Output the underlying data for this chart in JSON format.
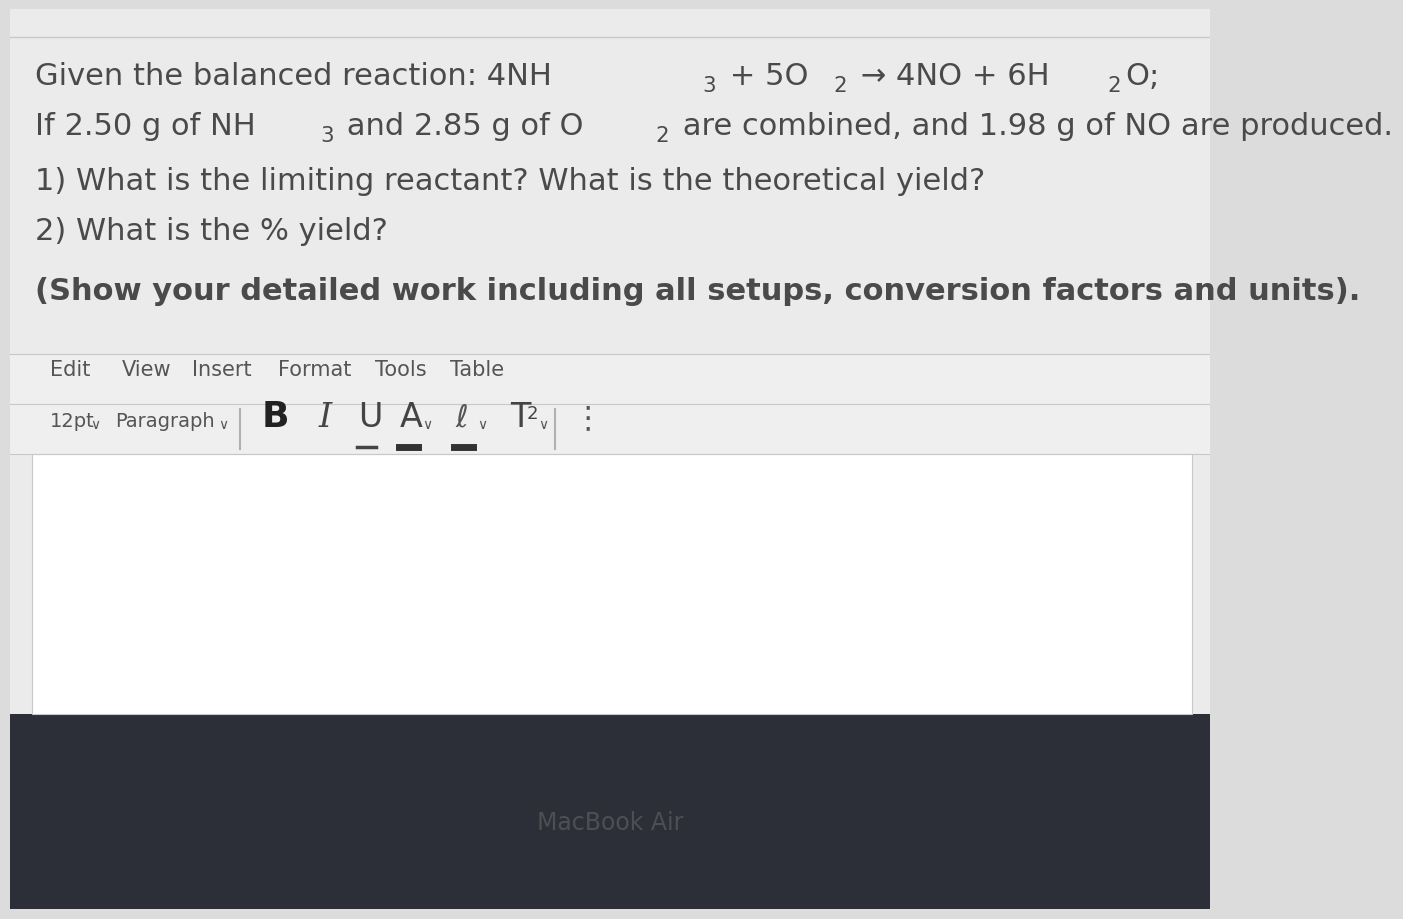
{
  "bg_light": "#dcdcdc",
  "screen_bg": "#ebebeb",
  "dark_bar_color": "#2c2f38",
  "macbook_label": "MacBook Air",
  "text_color": "#4a4a4a",
  "toolbar_text_color": "#555555",
  "border_color": "#c8c8c8",
  "separator_color": "#b0b0b0",
  "white": "#ffffff",
  "line1_parts": [
    [
      "Given the balanced reaction: 4NH",
      false
    ],
    [
      "3",
      true
    ],
    [
      " + 5O",
      false
    ],
    [
      "2",
      true
    ],
    [
      " → 4NO + 6H",
      false
    ],
    [
      "2",
      true
    ],
    [
      "O;",
      false
    ]
  ],
  "line2_parts": [
    [
      "If 2.50 g of NH",
      false
    ],
    [
      "3",
      true
    ],
    [
      " and 2.85 g of O",
      false
    ],
    [
      "2",
      true
    ],
    [
      " are combined, and 1.98 g of NO are produced.",
      false
    ]
  ],
  "line3": "1) What is the limiting reactant? What is the theoretical yield?",
  "line4": "2) What is the % yield?",
  "line5": "(Show your detailed work including all setups, conversion factors and units).",
  "menu_items": [
    "Edit",
    "View",
    "Insert",
    "Format",
    "Tools",
    "Table"
  ],
  "font_size": "12pt",
  "paragraph": "Paragraph",
  "main_fontsize": 22,
  "menu_fontsize": 15,
  "toolbar_fontsize": 14,
  "toolbar_icon_fontsize": 22
}
